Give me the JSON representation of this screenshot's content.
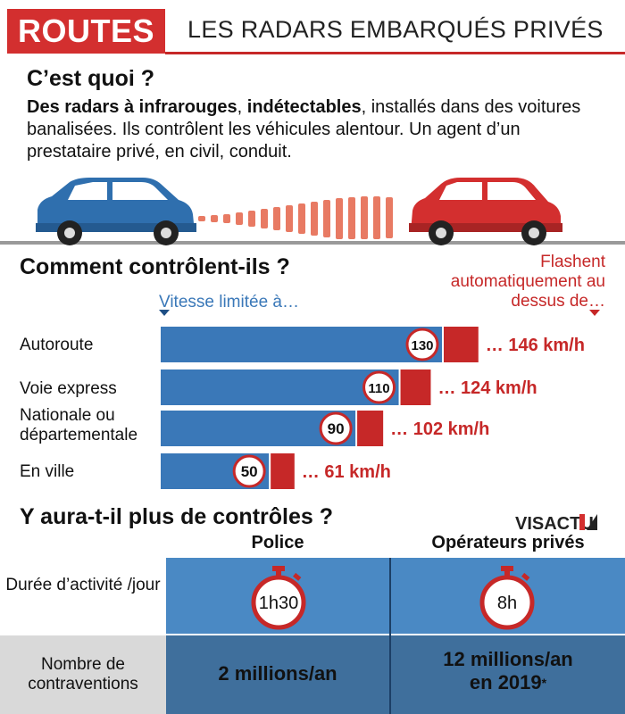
{
  "header": {
    "tag": "ROUTES",
    "title": "LES RADARS EMBARQUÉS PRIVÉS",
    "accent_color": "#d32f2f"
  },
  "section1": {
    "title": "C’est quoi ?",
    "desc_bold_1": "Des radars à infrarouges",
    "desc_sep": ", ",
    "desc_bold_2": "indétectables",
    "desc_rest": ", installés dans des voitures banalisées. Ils contrôlent les véhicules alentour. Un agent d’un prestataire privé, en civil, conduit."
  },
  "section2": {
    "title": "Comment contrôlent-ils ?",
    "limit_label": "Vitesse limitée à…",
    "flash_label": "Flashent automatiquement au dessus de…"
  },
  "chart_data": {
    "type": "bar",
    "orientation": "horizontal",
    "title": "Comment contrôlent-ils ?",
    "categories": [
      "Autoroute",
      "Voie express",
      "Nationale ou départementale",
      "En ville"
    ],
    "series": [
      {
        "name": "Vitesse limitée à…",
        "values": [
          130,
          110,
          90,
          50
        ],
        "color": "#3a78b8"
      },
      {
        "name": "Flashent automatiquement au dessus de…",
        "values": [
          146,
          124,
          102,
          61
        ],
        "color": "#c62828"
      }
    ],
    "value_labels": [
      "130",
      "110",
      "90",
      "50"
    ],
    "flash_labels": [
      "… 146 km/h",
      "… 124 km/h",
      "… 102 km/h",
      "… 61 km/h"
    ],
    "unit": "km/h"
  },
  "section3": {
    "title": "Y aura-t-il plus de contrôles ?",
    "logo_text": "VISACTU",
    "col_police": "Police",
    "col_private": "Opérateurs privés",
    "row1_label": "Durée d’activité /jour",
    "row1_police": "1h30",
    "row1_private": "8h",
    "row2_label": "Nombre de contraventions",
    "row2_police": "2 millions/an",
    "row2_private_line1": "12 millions/an",
    "row2_private_line2": "en 2019",
    "row2_private_note": "*",
    "row1_color": "#4a89c4",
    "row2_color": "#3f6f9c"
  }
}
